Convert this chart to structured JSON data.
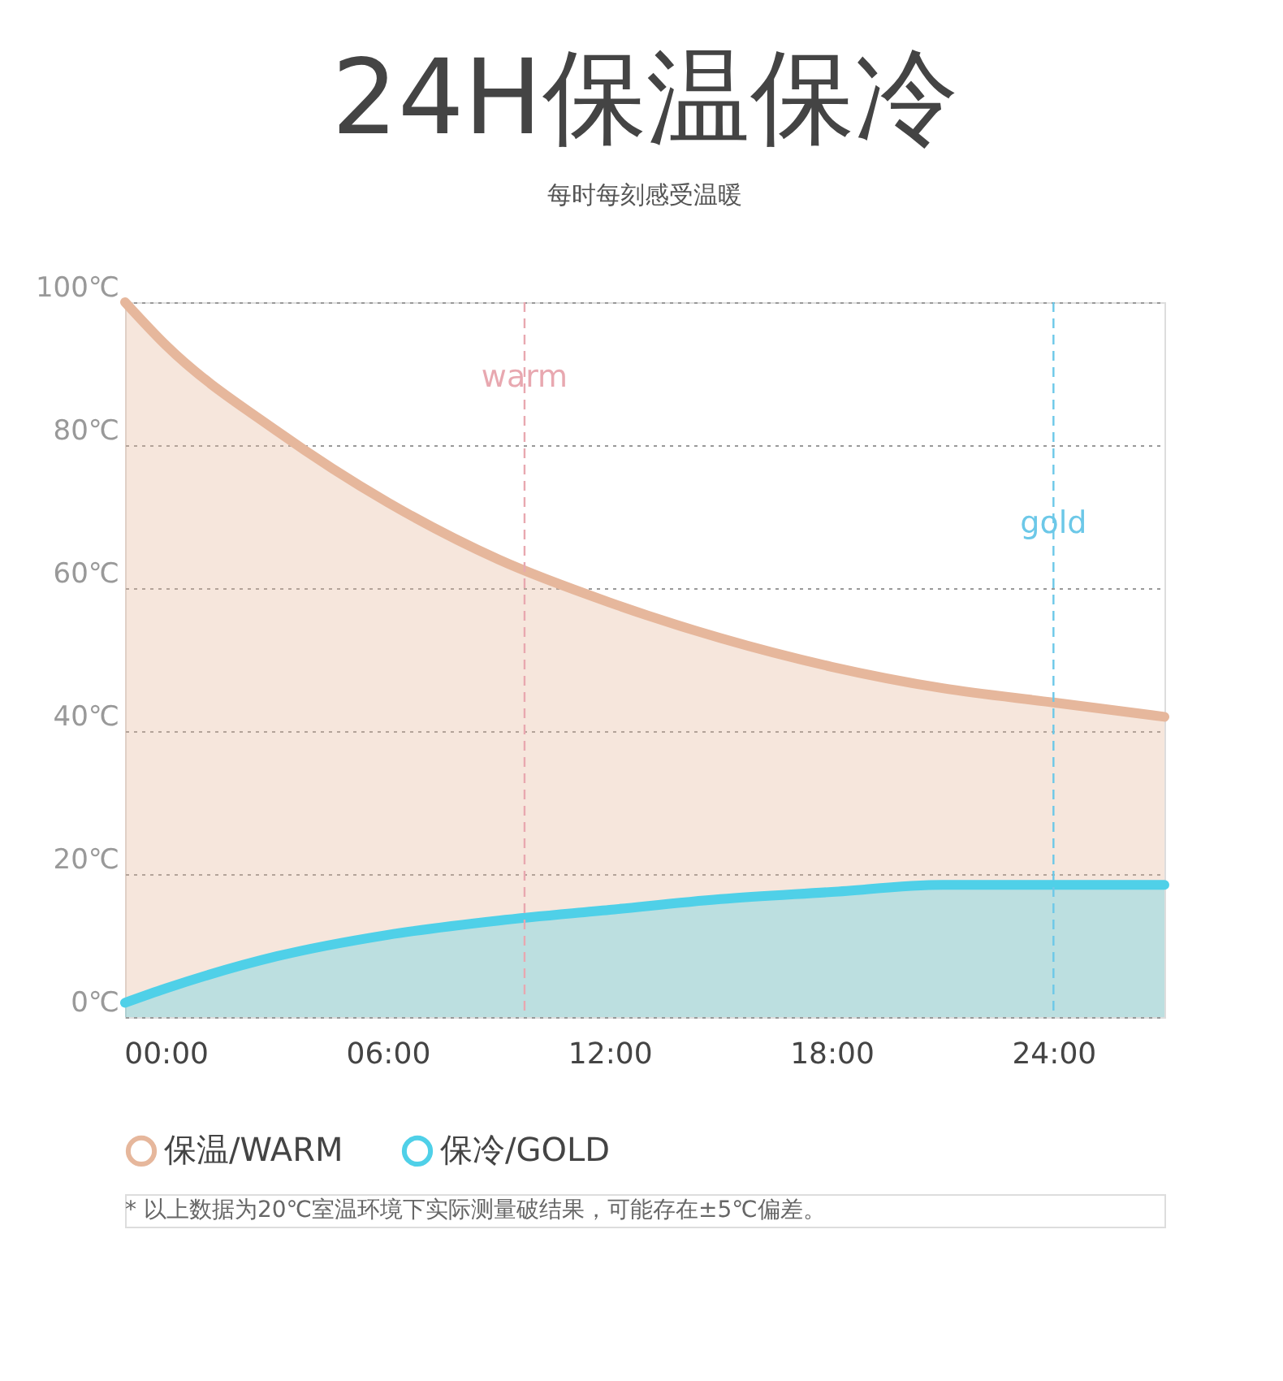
{
  "chart_data": {
    "type": "area",
    "title": "24H保温保冷",
    "subtitle": "每时每刻感受温暖",
    "x": [
      -1.1,
      0,
      3,
      6,
      9,
      12,
      15,
      18,
      21,
      24,
      27
    ],
    "series": [
      {
        "name": "保温/WARM",
        "color": "#e6b79c",
        "values": [
          100,
          94,
          82,
          72,
          64,
          58,
          53,
          49,
          46,
          44,
          42
        ]
      },
      {
        "name": "保冷/GOLD",
        "color": "#4fd0e8",
        "values": [
          2,
          4,
          8.5,
          11.5,
          13.5,
          15,
          16.5,
          17.5,
          18.5,
          18.5,
          18.5
        ]
      }
    ],
    "xlim": [
      -1.1,
      27
    ],
    "xticks": [
      {
        "value": 0,
        "label": "00:00"
      },
      {
        "value": 6,
        "label": "06:00"
      },
      {
        "value": 12,
        "label": "12:00"
      },
      {
        "value": 18,
        "label": "18:00"
      },
      {
        "value": 24,
        "label": "24:00"
      }
    ],
    "ylim": [
      0,
      100
    ],
    "yticks": [
      {
        "value": 0,
        "label": "0℃"
      },
      {
        "value": 20,
        "label": "20℃"
      },
      {
        "value": 40,
        "label": "40℃"
      },
      {
        "value": 60,
        "label": "60℃"
      },
      {
        "value": 80,
        "label": "80℃"
      },
      {
        "value": 100,
        "label": "100℃"
      }
    ],
    "grid": "y",
    "line_style": "solid",
    "legend": "bottom",
    "ref_lines": [
      {
        "axis": "x",
        "value": 9.7,
        "label": "warm",
        "color": "#e8a8b0",
        "line_style": "dashed"
      },
      {
        "axis": "x",
        "value": 24,
        "label": "gold",
        "color": "#6cc8e8",
        "line_style": "dashed"
      }
    ],
    "annotations": [
      "* 以上数据为20℃室温环境下实际测量破结果，可能存在±5℃偏差。"
    ]
  }
}
